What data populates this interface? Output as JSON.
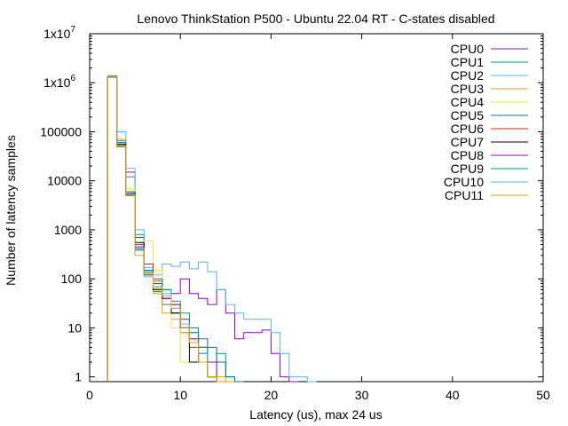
{
  "chart_data": {
    "type": "line",
    "title": "Lenovo ThinkStation P500 - Ubuntu 22.04 RT - C-states disabled",
    "xlabel": "Latency (us), max 24 us",
    "ylabel": "Number of latency samples",
    "xlim": [
      0,
      50
    ],
    "ylim": [
      0.8,
      10000000
    ],
    "yscale": "log",
    "step_style": "histogram",
    "grid": false,
    "legend_position": "top-right",
    "x_ticks": [
      "0",
      "10",
      "20",
      "30",
      "40",
      "50"
    ],
    "y_ticks": [
      {
        "value": 1,
        "base": "1",
        "exp": ""
      },
      {
        "value": 10,
        "base": "10",
        "exp": ""
      },
      {
        "value": 100,
        "base": "100",
        "exp": ""
      },
      {
        "value": 1000,
        "base": "1000",
        "exp": ""
      },
      {
        "value": 10000,
        "base": "10000",
        "exp": ""
      },
      {
        "value": 100000,
        "base": "100000",
        "exp": ""
      },
      {
        "value": 1000000,
        "base": "1x10",
        "exp": "6"
      },
      {
        "value": 10000000,
        "base": "1x10",
        "exp": "7"
      }
    ],
    "series": [
      {
        "name": "CPU0",
        "color": "#9400d3",
        "x": [
          2,
          3,
          4,
          5,
          6,
          7,
          8,
          9,
          10,
          11,
          12,
          13,
          14,
          15,
          16,
          17,
          18,
          19,
          20,
          21,
          22
        ],
        "values": [
          1300000,
          60000,
          15000,
          700,
          150,
          60,
          40,
          50,
          100,
          50,
          40,
          30,
          60,
          20,
          6,
          8,
          8,
          9,
          3,
          1,
          0
        ]
      },
      {
        "name": "CPU1",
        "color": "#009e73",
        "x": [
          2,
          3,
          4,
          5,
          6,
          7,
          8,
          9,
          10,
          11,
          12,
          13,
          14,
          15,
          16
        ],
        "values": [
          1350000,
          65000,
          12000,
          800,
          140,
          55,
          30,
          20,
          8,
          8,
          4,
          2,
          3,
          1,
          0
        ]
      },
      {
        "name": "CPU2",
        "color": "#56b4e9",
        "x": [
          2,
          3,
          4,
          5,
          6,
          7,
          8,
          9,
          10,
          11,
          12,
          13,
          14,
          15,
          16,
          17,
          18,
          19,
          20,
          21,
          22,
          23,
          24
        ],
        "values": [
          1300000,
          100000,
          18000,
          1000,
          170,
          120,
          200,
          180,
          220,
          160,
          220,
          140,
          60,
          30,
          20,
          15,
          15,
          15,
          8,
          3,
          1,
          1,
          0
        ]
      },
      {
        "name": "CPU3",
        "color": "#e69f00",
        "x": [
          2,
          3,
          4,
          5,
          6,
          7,
          8,
          9,
          10,
          11,
          12,
          13,
          14,
          15
        ],
        "values": [
          1400000,
          70000,
          5000,
          300,
          150,
          50,
          20,
          15,
          8,
          6,
          4,
          2,
          1,
          0
        ]
      },
      {
        "name": "CPU4",
        "color": "#f0e442",
        "x": [
          2,
          3,
          4,
          5,
          6,
          7,
          8,
          9,
          10,
          11,
          12,
          13,
          14
        ],
        "values": [
          1350000,
          60000,
          7000,
          400,
          600,
          150,
          40,
          10,
          2,
          2,
          2,
          1,
          0
        ]
      },
      {
        "name": "CPU5",
        "color": "#0072b2",
        "x": [
          2,
          3,
          4,
          5,
          6,
          7,
          8,
          9,
          10,
          11,
          12,
          13,
          14,
          15,
          16
        ],
        "values": [
          1300000,
          60000,
          6000,
          500,
          150,
          80,
          60,
          20,
          10,
          10,
          6,
          4,
          2,
          1,
          0
        ]
      },
      {
        "name": "CPU6",
        "color": "#e51e10",
        "x": [
          2,
          3,
          4,
          5,
          6,
          7,
          8,
          9,
          10,
          11,
          12,
          13,
          14
        ],
        "values": [
          1300000,
          55000,
          5000,
          400,
          200,
          100,
          60,
          30,
          10,
          4,
          2,
          1,
          0
        ]
      },
      {
        "name": "CPU7",
        "color": "#000000",
        "x": [
          2,
          3,
          4,
          5,
          6,
          7,
          8,
          9,
          10,
          11,
          12,
          13,
          14
        ],
        "values": [
          1300000,
          55000,
          5500,
          550,
          130,
          60,
          40,
          20,
          10,
          2,
          3,
          1,
          0
        ]
      },
      {
        "name": "CPU8",
        "color": "#9400d3",
        "x": [
          2,
          3,
          4,
          5,
          6,
          7,
          8,
          9,
          10,
          11,
          12,
          13,
          14
        ],
        "values": [
          1300000,
          50000,
          5000,
          450,
          120,
          80,
          40,
          30,
          15,
          6,
          4,
          2,
          0
        ]
      },
      {
        "name": "CPU9",
        "color": "#009e73",
        "x": [
          2,
          3,
          4,
          5,
          6,
          7,
          8,
          9,
          10,
          11,
          12,
          13,
          14
        ],
        "values": [
          1300000,
          50000,
          5000,
          400,
          120,
          90,
          60,
          35,
          20,
          8,
          4,
          1,
          0
        ]
      },
      {
        "name": "CPU10",
        "color": "#56b4e9",
        "x": [
          2,
          3,
          4,
          5,
          6,
          7,
          8,
          9,
          10,
          11,
          12,
          13,
          14
        ],
        "values": [
          1350000,
          52000,
          5200,
          380,
          110,
          70,
          50,
          25,
          12,
          5,
          3,
          1,
          0
        ]
      },
      {
        "name": "CPU11",
        "color": "#e69f00",
        "x": [
          2,
          3,
          4,
          5,
          6,
          7,
          8,
          9,
          10,
          11,
          12,
          13,
          14
        ],
        "values": [
          1400000,
          52000,
          5100,
          420,
          130,
          65,
          45,
          25,
          10,
          5,
          2,
          1,
          0
        ]
      }
    ]
  }
}
